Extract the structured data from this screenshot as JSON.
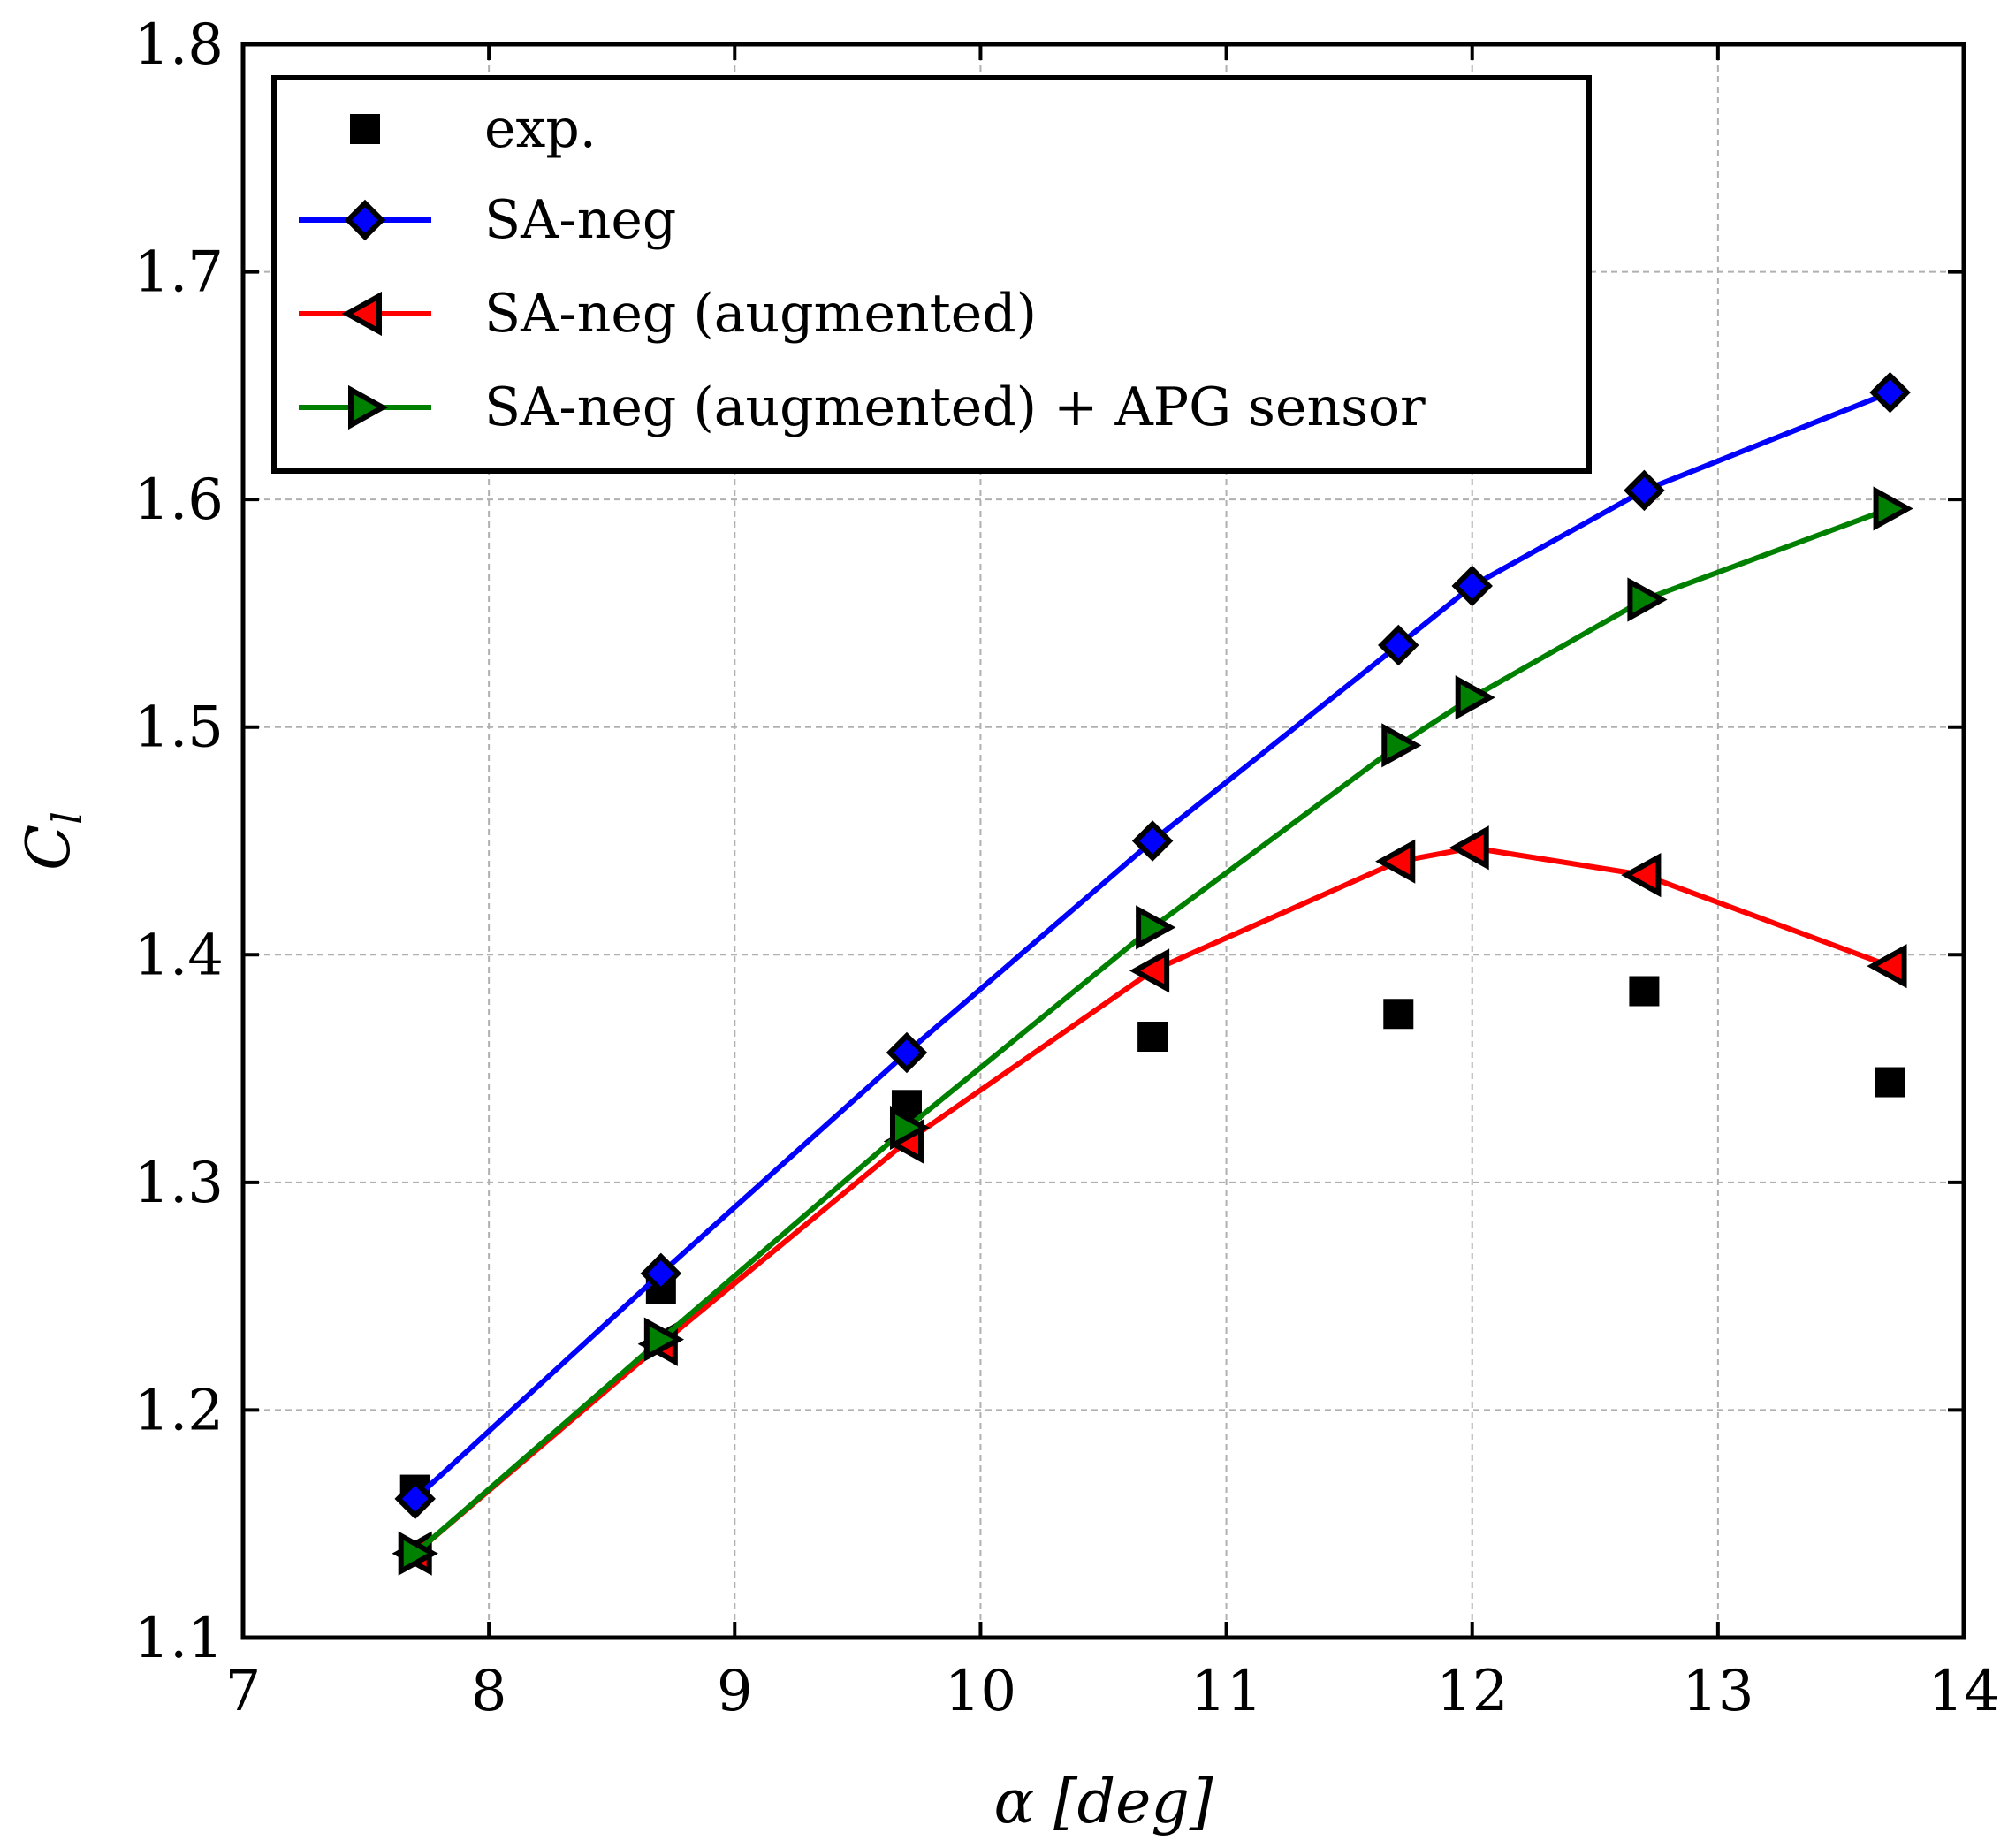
{
  "chart_data": {
    "type": "line",
    "title": "",
    "xlabel": "α [deg]",
    "ylabel": "C_l",
    "xlim": [
      7,
      14
    ],
    "ylim": [
      1.1,
      1.8
    ],
    "xticks": [
      7,
      8,
      9,
      10,
      11,
      12,
      13,
      14
    ],
    "yticks": [
      1.1,
      1.2,
      1.3,
      1.4,
      1.5,
      1.6,
      1.7,
      1.8
    ],
    "xtick_labels": [
      "7",
      "8",
      "9",
      "10",
      "11",
      "12",
      "13",
      "14"
    ],
    "ytick_labels": [
      "1.1",
      "1.2",
      "1.3",
      "1.4",
      "1.5",
      "1.6",
      "1.7",
      "1.8"
    ],
    "grid": true,
    "legend_position": "top-left",
    "series": [
      {
        "name": "exp.",
        "kind": "scatter",
        "marker": "square",
        "color": "#000000",
        "marker_fill": "#000000",
        "x": [
          7.7,
          8.7,
          9.7,
          10.7,
          11.7,
          12.7,
          13.7
        ],
        "y": [
          1.165,
          1.253,
          1.334,
          1.364,
          1.374,
          1.384,
          1.344
        ]
      },
      {
        "name": "SA-neg",
        "kind": "line",
        "marker": "diamond",
        "color": "#0000ff",
        "marker_fill": "#0000ff",
        "x": [
          7.7,
          8.7,
          9.7,
          10.7,
          11.7,
          12.0,
          12.7,
          13.7
        ],
        "y": [
          1.161,
          1.26,
          1.357,
          1.45,
          1.536,
          1.562,
          1.604,
          1.647
        ]
      },
      {
        "name": "SA-neg (augmented)",
        "kind": "line",
        "marker": "triangle-left",
        "color": "#ff0000",
        "marker_fill": "#ff0000",
        "x": [
          7.7,
          8.7,
          9.7,
          10.7,
          11.7,
          12.0,
          12.7,
          13.7
        ],
        "y": [
          1.137,
          1.229,
          1.318,
          1.393,
          1.441,
          1.447,
          1.435,
          1.395
        ]
      },
      {
        "name": "SA-neg (augmented) + APG sensor",
        "kind": "line",
        "marker": "triangle-right",
        "color": "#008000",
        "marker_fill": "#008000",
        "x": [
          7.7,
          8.7,
          9.7,
          10.7,
          11.7,
          12.0,
          12.7,
          13.7
        ],
        "y": [
          1.137,
          1.231,
          1.324,
          1.412,
          1.492,
          1.513,
          1.556,
          1.596
        ]
      }
    ]
  }
}
